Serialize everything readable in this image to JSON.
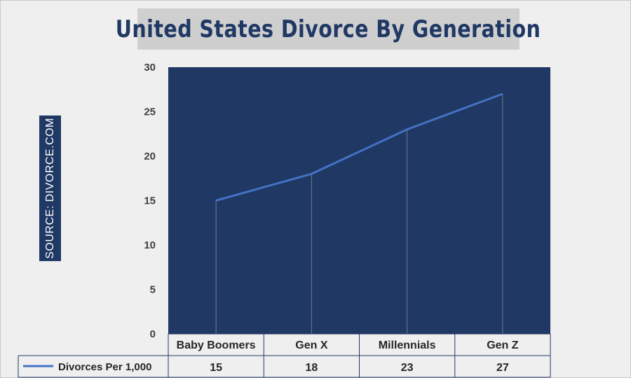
{
  "title": "United States Divorce By Generation",
  "source": "SOURCE: DIVORCE.COM",
  "colors": {
    "plot_background": "#1f3864",
    "line": "#4472c4",
    "title_text": "#1f3864",
    "title_background": "#cfcfcf",
    "source_background": "#1f3864"
  },
  "chart_data": {
    "type": "line",
    "title": "United States Divorce By Generation",
    "categories": [
      "Baby Boomers",
      "Gen X",
      "Millennials",
      "Gen Z"
    ],
    "series": [
      {
        "name": "Divorces Per 1,000",
        "values": [
          15,
          18,
          23,
          27
        ]
      }
    ],
    "ylim": [
      0,
      30
    ],
    "yticks": [
      "0",
      "5",
      "10",
      "15",
      "20",
      "25",
      "30"
    ],
    "data_table": true,
    "drop_lines": true,
    "legend": "data-table-left"
  }
}
